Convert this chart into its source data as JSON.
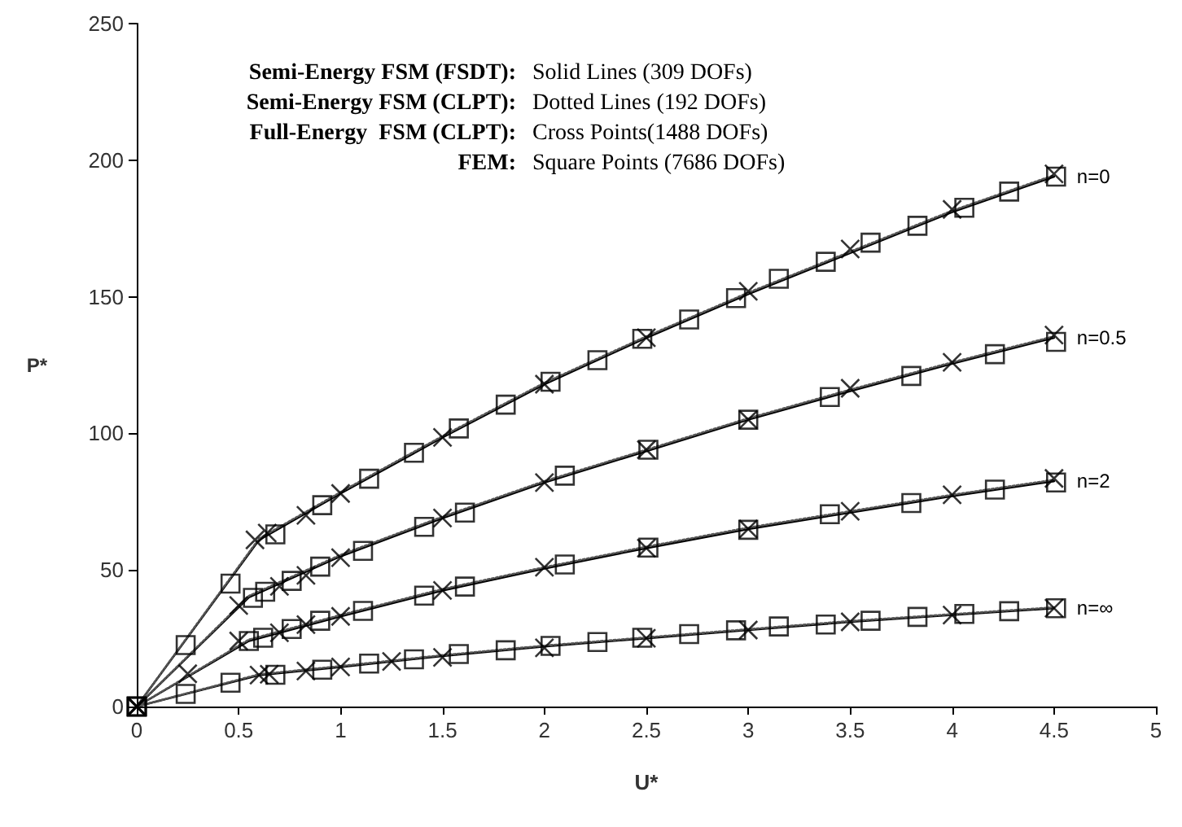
{
  "chart_data": {
    "type": "line",
    "xlabel": "U*",
    "ylabel": "P*",
    "xlim": [
      0,
      5
    ],
    "xticks": [
      0,
      0.5,
      1,
      1.5,
      2,
      2.5,
      3,
      3.5,
      4,
      4.5,
      5
    ],
    "ylim": [
      0,
      250
    ],
    "yticks": [
      0,
      50,
      100,
      150,
      200,
      250
    ],
    "annotations": [
      "Semi-Energy FSM (FSDT): Solid Lines (309 DOFs)",
      "Semi-Energy FSM (CLPT): Dotted Lines (192 DOFs)",
      "Full-Energy  FSM (CLPT): Cross Points(1488 DOFs)",
      "FEM: Square Points (7686 DOFs)"
    ],
    "series": [
      {
        "name": "n=0",
        "line_style": "solid",
        "marker": "none",
        "color": "#000000",
        "x": [
          0,
          0.6,
          1,
          1.5,
          2,
          2.5,
          3,
          3.5,
          4,
          4.5
        ],
        "values": [
          0,
          61,
          78,
          98.5,
          118,
          135,
          151,
          166,
          181,
          194
        ]
      },
      {
        "type": "line",
        "line_style": "dotted",
        "marker": "none",
        "color": "#555555",
        "x": [
          0,
          0.6,
          1,
          1.5,
          2,
          2.5,
          3,
          3.5,
          4,
          4.5
        ],
        "values": [
          0,
          61.5,
          78.5,
          99,
          118.5,
          135.5,
          151.5,
          166.5,
          181.5,
          194.5
        ]
      },
      {
        "type": "scatter",
        "marker": "cross",
        "color": "#000000",
        "x": [
          0,
          0.58,
          0.64,
          0.83,
          1,
          1.5,
          2,
          2.5,
          3,
          3.5,
          4,
          4.5
        ],
        "values": [
          0,
          61,
          63.5,
          70,
          78,
          98.5,
          118,
          135,
          152,
          167.5,
          182,
          195
        ]
      },
      {
        "type": "scatter",
        "marker": "square",
        "color": "#000000",
        "x": [
          0,
          0.24,
          0.46,
          0.68,
          0.91,
          1.14,
          1.36,
          1.58,
          1.81,
          2.03,
          2.26,
          2.48,
          2.71,
          2.94,
          3.15,
          3.38,
          3.6,
          3.83,
          4.06,
          4.28,
          4.51
        ],
        "values": [
          0,
          22.5,
          45,
          63,
          73.7,
          83.4,
          92.9,
          101.8,
          110.5,
          118.9,
          126.8,
          134.6,
          141.7,
          149.5,
          156.6,
          162.8,
          169.8,
          176,
          182.6,
          188.5,
          194
        ]
      },
      {
        "name": "n=0.5",
        "line_style": "solid",
        "marker": "none",
        "color": "#000000",
        "x": [
          0,
          0.55,
          1,
          1.5,
          2,
          2.5,
          3,
          3.5,
          4,
          4.5
        ],
        "values": [
          0,
          40,
          55,
          69,
          82,
          93.5,
          105,
          115.5,
          125.5,
          135
        ]
      },
      {
        "type": "line",
        "line_style": "dotted",
        "marker": "none",
        "color": "#555555",
        "x": [
          0,
          0.55,
          1,
          1.5,
          2,
          2.5,
          3,
          3.5,
          4,
          4.5
        ],
        "values": [
          0,
          40.5,
          55.5,
          69.5,
          82.5,
          94,
          105.5,
          116,
          126,
          135.5
        ]
      },
      {
        "type": "scatter",
        "marker": "cross",
        "color": "#000000",
        "x": [
          0,
          0.5,
          0.7,
          0.83,
          1,
          1.5,
          2,
          2.5,
          3,
          3.5,
          4,
          4.5
        ],
        "values": [
          0,
          37,
          44,
          48,
          54.5,
          69,
          82,
          94,
          105,
          116.5,
          126,
          136
        ]
      },
      {
        "type": "scatter",
        "marker": "square",
        "color": "#000000",
        "x": [
          0,
          0.57,
          0.63,
          0.76,
          0.9,
          1.11,
          1.41,
          1.61,
          2.1,
          2.51,
          3,
          3.4,
          3.8,
          4.21,
          4.51
        ],
        "values": [
          0,
          39.8,
          42,
          46,
          51.2,
          57,
          65.8,
          71,
          84.5,
          94,
          105,
          113.3,
          121,
          129,
          133.5
        ]
      },
      {
        "name": "n=2",
        "line_style": "solid",
        "marker": "none",
        "color": "#000000",
        "x": [
          0,
          0.55,
          1,
          1.5,
          2,
          2.5,
          3,
          3.5,
          4,
          4.5
        ],
        "values": [
          0,
          24,
          33,
          42.5,
          50.5,
          58,
          65,
          71,
          77,
          82.5
        ]
      },
      {
        "type": "line",
        "line_style": "dotted",
        "marker": "none",
        "color": "#555555",
        "x": [
          0,
          0.55,
          1,
          1.5,
          2,
          2.5,
          3,
          3.5,
          4,
          4.5
        ],
        "values": [
          0,
          24.5,
          33.5,
          43,
          51,
          58.5,
          65.5,
          71.5,
          77.5,
          83
        ]
      },
      {
        "type": "scatter",
        "marker": "cross",
        "color": "#000000",
        "x": [
          0,
          0.25,
          0.5,
          0.7,
          0.83,
          1,
          1.5,
          2,
          2.5,
          3,
          3.5,
          4,
          4.5
        ],
        "values": [
          0,
          12,
          24,
          27,
          30,
          33,
          42.5,
          51,
          58,
          65,
          71.5,
          77.5,
          83.5
        ]
      },
      {
        "type": "scatter",
        "marker": "square",
        "color": "#000000",
        "x": [
          0,
          0.55,
          0.62,
          0.76,
          0.9,
          1.11,
          1.41,
          1.61,
          2.1,
          2.51,
          3,
          3.4,
          3.8,
          4.21,
          4.51
        ],
        "values": [
          0,
          24,
          25.2,
          28.4,
          31.4,
          35,
          40.6,
          43.9,
          52,
          58.2,
          64.7,
          70.4,
          74.5,
          79.4,
          82
        ]
      },
      {
        "name": "n=∞",
        "line_style": "solid",
        "marker": "none",
        "color": "#000000",
        "x": [
          0,
          0.6,
          1,
          1.5,
          2,
          2.5,
          3,
          3.5,
          4,
          4.5
        ],
        "values": [
          0,
          11.5,
          14.5,
          18.5,
          22,
          25,
          28,
          31,
          33.5,
          36
        ]
      },
      {
        "type": "line",
        "line_style": "dotted",
        "marker": "none",
        "color": "#555555",
        "x": [
          0,
          0.6,
          1,
          1.5,
          2,
          2.5,
          3,
          3.5,
          4,
          4.5
        ],
        "values": [
          0,
          11.8,
          14.8,
          18.8,
          22.3,
          25.3,
          28.3,
          31.3,
          33.8,
          36.3
        ]
      },
      {
        "type": "scatter",
        "marker": "cross",
        "color": "#000000",
        "x": [
          0,
          0.6,
          0.65,
          0.83,
          1,
          1.25,
          1.5,
          2,
          2.5,
          3,
          3.5,
          4,
          4.5
        ],
        "values": [
          0,
          11.5,
          11.8,
          13,
          14.5,
          16.5,
          18,
          21.5,
          25,
          28,
          31,
          33.5,
          36
        ]
      },
      {
        "type": "scatter",
        "marker": "square",
        "color": "#000000",
        "x": [
          0,
          0.24,
          0.46,
          0.68,
          0.91,
          1.14,
          1.36,
          1.58,
          1.81,
          2.03,
          2.26,
          2.48,
          2.71,
          2.94,
          3.15,
          3.38,
          3.6,
          3.83,
          4.06,
          4.28,
          4.51
        ],
        "values": [
          0,
          4.6,
          8.7,
          11.6,
          13.5,
          15.7,
          17.3,
          19.2,
          20.6,
          22.2,
          23.6,
          25.2,
          26.5,
          27.9,
          29.3,
          30,
          31.4,
          32.8,
          33.9,
          34.9,
          36
        ]
      }
    ]
  }
}
